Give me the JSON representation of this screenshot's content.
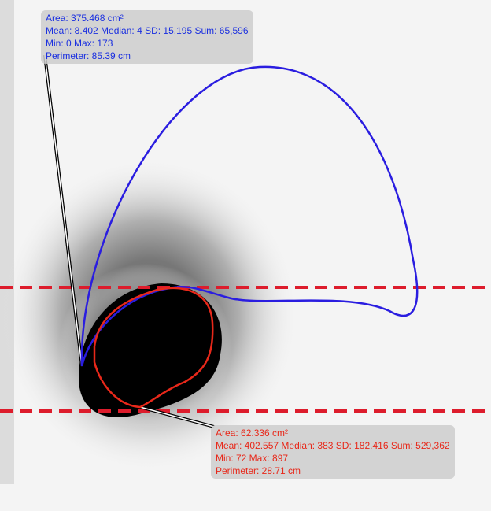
{
  "annotations": [
    {
      "lines": [
        "Area: 375.468 cm²",
        "Mean: 8.402 Median: 4 SD: 15.195 Sum: 65,596",
        "Min: 0 Max: 173",
        "Perimeter: 85.39 cm"
      ]
    },
    {
      "lines": [
        "Area: 62.336 cm²",
        "Mean: 402.557 Median: 383 SD: 182.416 Sum: 529,362",
        "Min: 72 Max: 897",
        "Perimeter: 28.71 cm"
      ]
    }
  ]
}
